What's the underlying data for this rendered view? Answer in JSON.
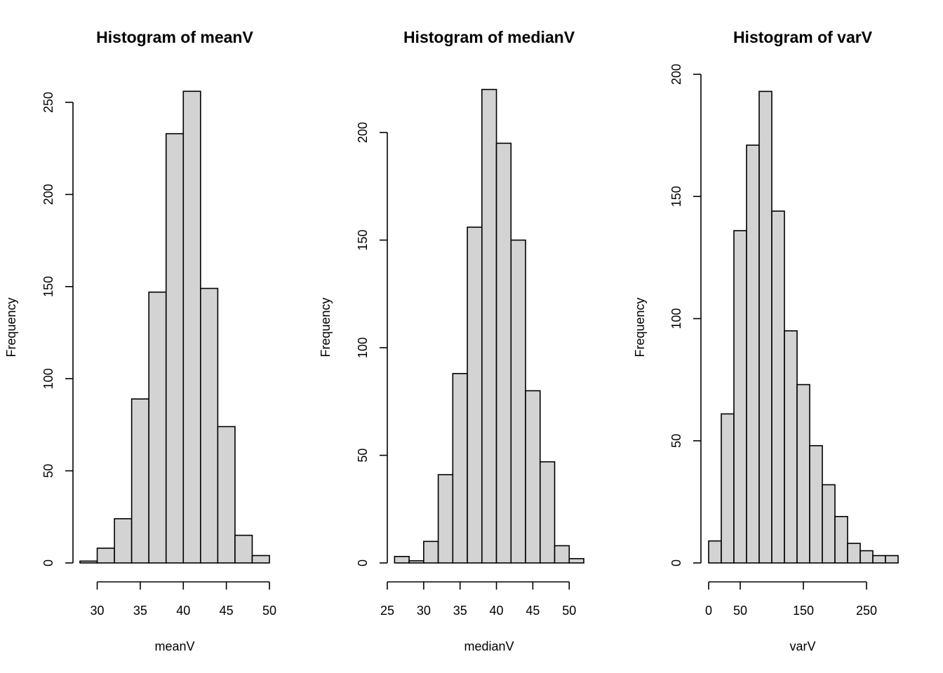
{
  "chart_data": [
    {
      "type": "bar",
      "title": "Histogram of meanV",
      "xlabel": "meanV",
      "ylabel": "Frequency",
      "breaks": [
        28,
        30,
        32,
        34,
        36,
        38,
        40,
        42,
        44,
        46,
        48,
        50
      ],
      "values": [
        1,
        8,
        24,
        89,
        147,
        233,
        256,
        149,
        74,
        15,
        4
      ],
      "xticks": [
        30,
        35,
        40,
        45,
        50
      ],
      "yticks": [
        0,
        50,
        100,
        150,
        200,
        250
      ],
      "xlim": [
        30,
        50
      ],
      "ylim": [
        0,
        250
      ],
      "colors": {
        "bar_fill": "#d3d3d3",
        "bar_stroke": "#000000"
      }
    },
    {
      "type": "bar",
      "title": "Histogram of medianV",
      "xlabel": "medianV",
      "ylabel": "Frequency",
      "breaks": [
        26,
        28,
        30,
        32,
        34,
        36,
        38,
        40,
        42,
        44,
        46,
        48,
        50,
        52
      ],
      "values": [
        3,
        1,
        10,
        41,
        88,
        156,
        220,
        195,
        150,
        80,
        47,
        8,
        2
      ],
      "xticks": [
        25,
        30,
        35,
        40,
        45,
        50
      ],
      "yticks": [
        0,
        50,
        100,
        150,
        200
      ],
      "xlim": [
        25,
        52
      ],
      "ylim": [
        0,
        200
      ],
      "colors": {
        "bar_fill": "#d3d3d3",
        "bar_stroke": "#000000"
      }
    },
    {
      "type": "bar",
      "title": "Histogram of varV",
      "xlabel": "varV",
      "ylabel": "Frequency",
      "breaks": [
        0,
        20,
        40,
        60,
        80,
        100,
        120,
        140,
        160,
        180,
        200,
        220,
        240,
        260,
        280,
        300
      ],
      "values": [
        9,
        61,
        136,
        171,
        193,
        144,
        95,
        73,
        48,
        32,
        19,
        8,
        5,
        3,
        3
      ],
      "xticks": [
        0,
        50,
        150,
        250
      ],
      "yticks": [
        0,
        50,
        100,
        150,
        200
      ],
      "xlim": [
        0,
        300
      ],
      "ylim": [
        0,
        200
      ],
      "colors": {
        "bar_fill": "#d3d3d3",
        "bar_stroke": "#000000"
      }
    }
  ]
}
